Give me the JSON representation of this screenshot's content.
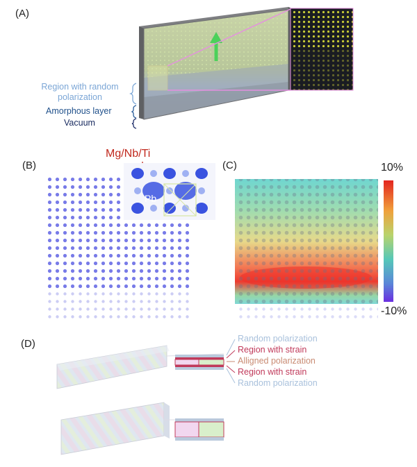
{
  "panels": {
    "a": {
      "label": "(A)",
      "region_random_line1": "Region with random",
      "region_random_line2": "polarization",
      "amorphous": "Amorphous layer",
      "vacuum": "Vacuum"
    },
    "b": {
      "label": "(B)",
      "inset_title": "Mg/Nb/Ti",
      "inset_atom": "Pb"
    },
    "c": {
      "label": "(C)",
      "colorbar_max": "10%",
      "colorbar_min": "-10%"
    },
    "d": {
      "label": "(D)",
      "legend": [
        "Random polarization",
        "Region with strain",
        "Alligned polarization",
        "Region with strain",
        "Random polarization"
      ]
    }
  },
  "colors": {
    "random_polarization": "#a9c1dc",
    "strain": "#c0395a",
    "aligned_polarization": "#c98b73",
    "amorphous": "#1e4f8a",
    "vacuum": "#17295e",
    "inset_title": "#c0281d"
  }
}
